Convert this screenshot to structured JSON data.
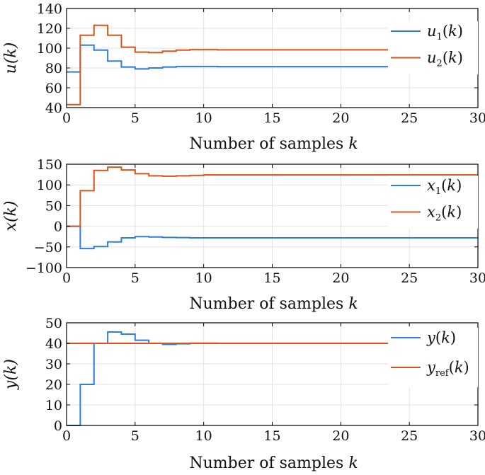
{
  "colors": {
    "series1": "#2f7fd8",
    "series2": "#d9541b",
    "grid": "#e3e3e3",
    "axis": "#000000"
  },
  "chart_data": [
    {
      "type": "line",
      "step": true,
      "xlim": [
        0,
        30
      ],
      "ylim": [
        40,
        140
      ],
      "xticks": [
        0,
        5,
        10,
        15,
        20,
        25,
        30
      ],
      "xtick_labels": [
        "0",
        "5",
        "10",
        "15",
        "20",
        "25",
        "30"
      ],
      "yticks": [
        40,
        60,
        80,
        100,
        120,
        140
      ],
      "ytick_labels": [
        "40",
        "60",
        "80",
        "100",
        "120",
        "140"
      ],
      "xlabel": {
        "text": "Number of samples ",
        "var": "k"
      },
      "ylabel": "u(k)",
      "grid": true,
      "legend_position": "right",
      "series": [
        {
          "name": "u1(k)",
          "legend": {
            "base": "u",
            "sub": "1",
            "rest": "(k)"
          },
          "color": "#2f7fd8",
          "x": [
            0,
            1,
            2,
            3,
            4,
            5,
            6,
            7,
            8,
            9,
            10,
            11,
            12,
            13,
            14,
            15,
            16,
            17,
            18,
            19,
            20,
            21,
            22,
            23,
            24,
            25,
            26,
            27,
            28,
            29,
            30
          ],
          "y": [
            76,
            103,
            98,
            87,
            81,
            79,
            80,
            81,
            81.5,
            81.5,
            81.5,
            81.3,
            81.3,
            81.3,
            81.3,
            81.3,
            81.3,
            81.3,
            81.3,
            81.3,
            81.3,
            81.3,
            81.3,
            81.3,
            81.3,
            81.3,
            81.3,
            81.3,
            81.3,
            81.3,
            81.3
          ]
        },
        {
          "name": "u2(k)",
          "legend": {
            "base": "u",
            "sub": "2",
            "rest": "(k)"
          },
          "color": "#d9541b",
          "x": [
            0,
            1,
            2,
            3,
            4,
            5,
            6,
            7,
            8,
            9,
            10,
            11,
            12,
            13,
            14,
            15,
            16,
            17,
            18,
            19,
            20,
            21,
            22,
            23,
            24,
            25,
            26,
            27,
            28,
            29,
            30
          ],
          "y": [
            43,
            113,
            123,
            113,
            101,
            96,
            95.5,
            97,
            98,
            98.5,
            98.5,
            98.3,
            98.3,
            98.3,
            98.3,
            98.3,
            98.3,
            98.3,
            98.3,
            98.3,
            98.3,
            98.3,
            98.3,
            98.3,
            98.3,
            98.3,
            98.3,
            98.3,
            98.3,
            98.3,
            98.3
          ]
        }
      ]
    },
    {
      "type": "line",
      "step": true,
      "xlim": [
        0,
        30
      ],
      "ylim": [
        -100,
        150
      ],
      "xticks": [
        0,
        5,
        10,
        15,
        20,
        25,
        30
      ],
      "xtick_labels": [
        "0",
        "5",
        "10",
        "15",
        "20",
        "25",
        "30"
      ],
      "yticks": [
        -100,
        -50,
        0,
        50,
        100,
        150
      ],
      "ytick_labels": [
        "−100",
        "−50",
        "0",
        "50",
        "100",
        "150"
      ],
      "xlabel": {
        "text": "Number of samples ",
        "var": "k"
      },
      "ylabel": "x(k)",
      "grid": true,
      "legend_position": "right",
      "series": [
        {
          "name": "x1(k)",
          "legend": {
            "base": "x",
            "sub": "1",
            "rest": "(k)"
          },
          "color": "#2f7fd8",
          "x": [
            0,
            1,
            2,
            3,
            4,
            5,
            6,
            7,
            8,
            9,
            10,
            11,
            12,
            13,
            14,
            15,
            16,
            17,
            18,
            19,
            20,
            21,
            22,
            23,
            24,
            25,
            26,
            27,
            28,
            29,
            30
          ],
          "y": [
            0,
            -54,
            -49,
            -38,
            -28,
            -25,
            -26,
            -27,
            -27.5,
            -28,
            -28,
            -28,
            -28,
            -28,
            -28,
            -28,
            -28,
            -28,
            -28,
            -28,
            -28,
            -28,
            -28,
            -28,
            -28,
            -28,
            -28,
            -28,
            -28,
            -28,
            -28
          ]
        },
        {
          "name": "x2(k)",
          "legend": {
            "base": "x",
            "sub": "2",
            "rest": "(k)"
          },
          "color": "#d9541b",
          "x": [
            0,
            1,
            2,
            3,
            4,
            5,
            6,
            7,
            8,
            9,
            10,
            11,
            12,
            13,
            14,
            15,
            16,
            17,
            18,
            19,
            20,
            21,
            22,
            23,
            24,
            25,
            26,
            27,
            28,
            29,
            30
          ],
          "y": [
            0,
            86,
            135,
            143,
            136,
            127,
            122,
            121,
            122,
            123,
            124,
            124,
            124,
            124,
            124,
            124,
            124,
            124,
            124,
            124,
            124,
            124,
            124,
            124,
            124,
            124,
            124,
            124,
            124,
            124,
            124
          ]
        }
      ]
    },
    {
      "type": "line",
      "step": true,
      "xlim": [
        0,
        30
      ],
      "ylim": [
        0,
        50
      ],
      "xticks": [
        0,
        5,
        10,
        15,
        20,
        25,
        30
      ],
      "xtick_labels": [
        "0",
        "5",
        "10",
        "15",
        "20",
        "25",
        "30"
      ],
      "yticks": [
        0,
        10,
        20,
        30,
        40,
        50
      ],
      "ytick_labels": [
        "0",
        "10",
        "20",
        "30",
        "40",
        "50"
      ],
      "xlabel": {
        "text": "Number of samples ",
        "var": "k"
      },
      "ylabel": "y(k)",
      "grid": true,
      "legend_position": "right",
      "series": [
        {
          "name": "y(k)",
          "legend": {
            "base": "y",
            "sub": "",
            "rest": "(k)"
          },
          "color": "#2f7fd8",
          "x": [
            0,
            1,
            2,
            3,
            4,
            5,
            6,
            7,
            8,
            9,
            10,
            11,
            12,
            13,
            14,
            15,
            16,
            17,
            18,
            19,
            20,
            21,
            22,
            23,
            24,
            25,
            26,
            27,
            28,
            29,
            30
          ],
          "y": [
            0,
            20,
            40,
            45.5,
            44.5,
            41.5,
            40,
            39.5,
            39.8,
            40.1,
            40.1,
            40,
            40,
            40,
            40,
            40,
            40,
            40,
            40,
            40,
            40,
            40,
            40,
            40,
            40,
            40,
            40,
            40,
            40,
            40,
            40
          ]
        },
        {
          "name": "yref(k)",
          "legend": {
            "base": "y",
            "sub": "ref",
            "rest": "(k)"
          },
          "color": "#d9541b",
          "x": [
            0,
            30
          ],
          "y": [
            40,
            40
          ]
        }
      ]
    }
  ]
}
